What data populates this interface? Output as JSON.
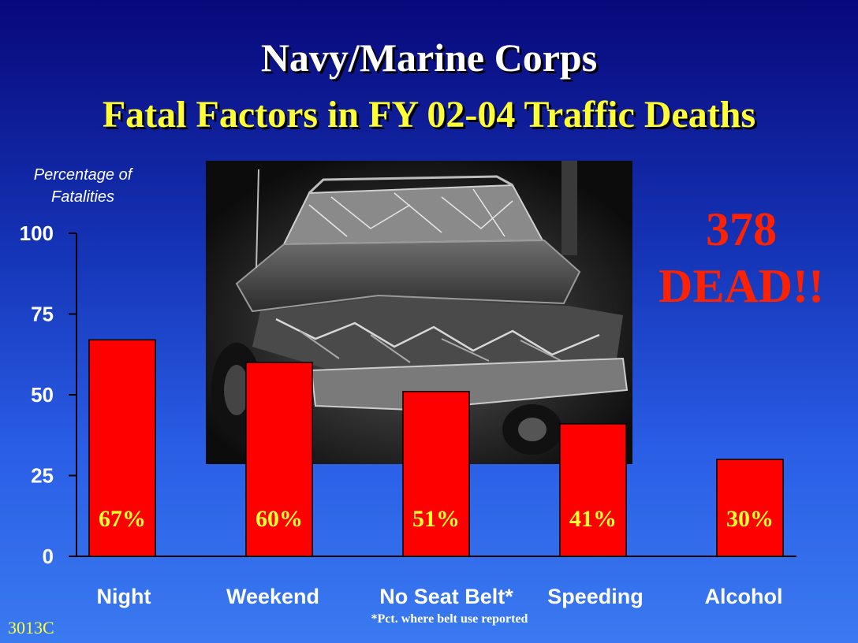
{
  "chart_data": {
    "type": "bar",
    "title": "Navy/Marine Corps",
    "subtitle": "Fatal Factors in FY 02-04 Traffic Deaths",
    "ylabel": "Percentage of Fatalities",
    "xlabel": "",
    "ylim": [
      0,
      100
    ],
    "yticks": [
      0,
      25,
      50,
      75,
      100
    ],
    "categories": [
      "Night",
      "Weekend",
      "No Seat Belt*",
      "Speeding",
      "Alcohol"
    ],
    "values": [
      67,
      60,
      51,
      41,
      30
    ],
    "data_labels": [
      "67%",
      "60%",
      "51%",
      "41%",
      "30%"
    ],
    "bar_color": "#ff0000",
    "label_color": "#ffff33",
    "grid": false,
    "legend": "none"
  },
  "annotation": {
    "line1": "378",
    "line2": "DEAD!!"
  },
  "footnote": "*Pct. where belt use reported",
  "slide_code": "3013C",
  "photo": {
    "subject": "wrecked-car-photo"
  }
}
